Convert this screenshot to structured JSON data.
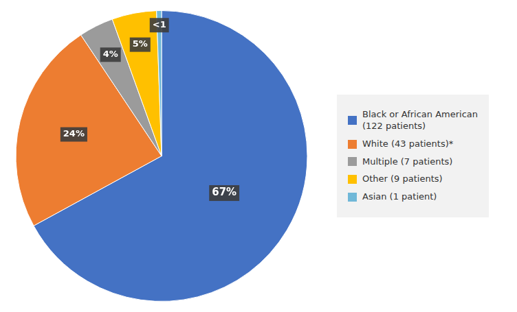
{
  "chart_data": {
    "type": "pie",
    "categories": [
      "Black or African American\n(122 patients)",
      "White (43 patients)*",
      "Multiple (7 patients)",
      "Other (9 patients)",
      "Asian (1 patient)"
    ],
    "values": [
      122,
      43,
      7,
      9,
      1
    ],
    "value_labels": [
      "67%",
      "24%",
      "4%",
      "5%",
      "<1"
    ],
    "colors": [
      "#4472C4",
      "#ED7D31",
      "#9B9B9B",
      "#FFC000",
      "#70B8D8"
    ],
    "data_labels": true,
    "legend": "right"
  }
}
